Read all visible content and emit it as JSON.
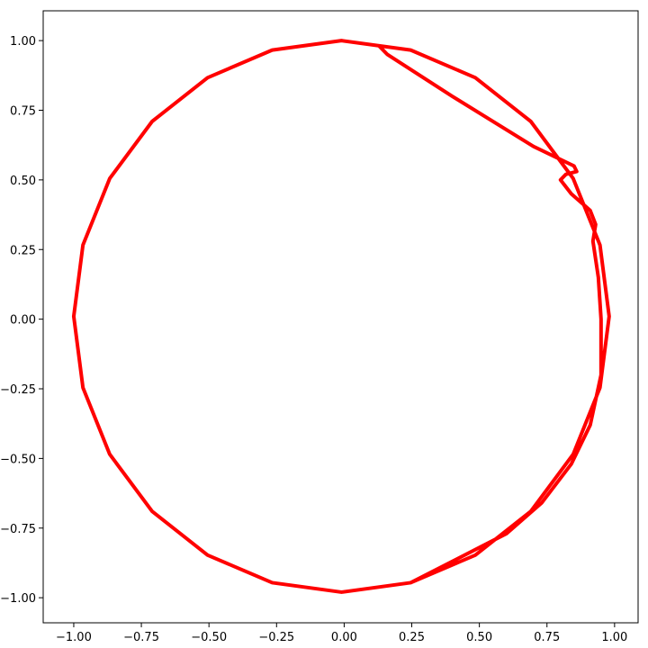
{
  "chart_data": {
    "type": "line",
    "xlim": [
      -1.113,
      1.087
    ],
    "ylim": [
      -1.09,
      1.107
    ],
    "xticks": [
      {
        "value": -1.0,
        "label": "−1.00"
      },
      {
        "value": -0.75,
        "label": "−0.75"
      },
      {
        "value": -0.5,
        "label": "−0.50"
      },
      {
        "value": -0.25,
        "label": "−0.25"
      },
      {
        "value": 0,
        "label": "0.00"
      },
      {
        "value": 0.25,
        "label": "0.25"
      },
      {
        "value": 0.5,
        "label": "0.50"
      },
      {
        "value": 0.75,
        "label": "0.75"
      },
      {
        "value": 1.0,
        "label": "1.00"
      }
    ],
    "yticks": [
      {
        "value": -1.0,
        "label": "−1.00"
      },
      {
        "value": -0.75,
        "label": "−0.75"
      },
      {
        "value": -0.5,
        "label": "−0.50"
      },
      {
        "value": -0.25,
        "label": "−0.25"
      },
      {
        "value": 0,
        "label": "0.00"
      },
      {
        "value": 0.25,
        "label": "0.25"
      },
      {
        "value": 0.5,
        "label": "0.50"
      },
      {
        "value": 0.75,
        "label": "0.75"
      },
      {
        "value": 1.0,
        "label": "1.00"
      }
    ],
    "grid": false,
    "x": [
      0.13,
      0.16,
      0.4,
      0.7,
      0.85,
      0.86,
      0.82,
      0.8,
      0.84,
      0.91,
      0.93,
      0.92,
      0.94,
      0.95,
      0.95,
      0.91,
      0.84,
      0.73,
      0.6,
      0.246,
      -0.01,
      -0.266,
      -0.505,
      -0.71,
      -0.867,
      -0.966,
      -1.0,
      -0.966,
      -0.867,
      -0.71,
      -0.505,
      -0.266,
      -0.01,
      0.246,
      0.485,
      0.69,
      0.847,
      0.946,
      0.98,
      0.946,
      0.847,
      0.69,
      0.485,
      0.246,
      -0.01,
      -0.266,
      -0.505,
      -0.71,
      -0.867,
      -0.966,
      -1.0,
      -0.966,
      -0.867,
      -0.71,
      -0.505,
      -0.266,
      -0.01,
      0.246,
      0.485,
      0.69,
      0.847,
      0.946,
      0.98,
      0.946,
      0.847,
      0.69,
      0.485
    ],
    "series": [
      {
        "color": "#ff0000",
        "values": [
          0.98,
          0.95,
          0.8,
          0.62,
          0.55,
          0.53,
          0.52,
          0.5,
          0.45,
          0.39,
          0.34,
          0.28,
          0.15,
          0.0,
          -0.2,
          -0.38,
          -0.52,
          -0.66,
          -0.77,
          -0.946,
          -0.98,
          -0.946,
          -0.847,
          -0.69,
          -0.485,
          -0.246,
          0.01,
          0.266,
          0.505,
          0.71,
          0.867,
          0.966,
          1.0,
          0.966,
          0.867,
          0.71,
          0.505,
          0.266,
          0.01,
          -0.246,
          -0.485,
          -0.69,
          -0.847,
          -0.946,
          -0.98,
          -0.946,
          -0.847,
          -0.69,
          -0.485,
          -0.246,
          0.01,
          0.266,
          0.505,
          0.71,
          0.867,
          0.966,
          1.0,
          0.966,
          0.867,
          0.71,
          0.505,
          0.266,
          0.01,
          -0.246,
          -0.485,
          -0.69,
          -0.847
        ]
      }
    ]
  }
}
